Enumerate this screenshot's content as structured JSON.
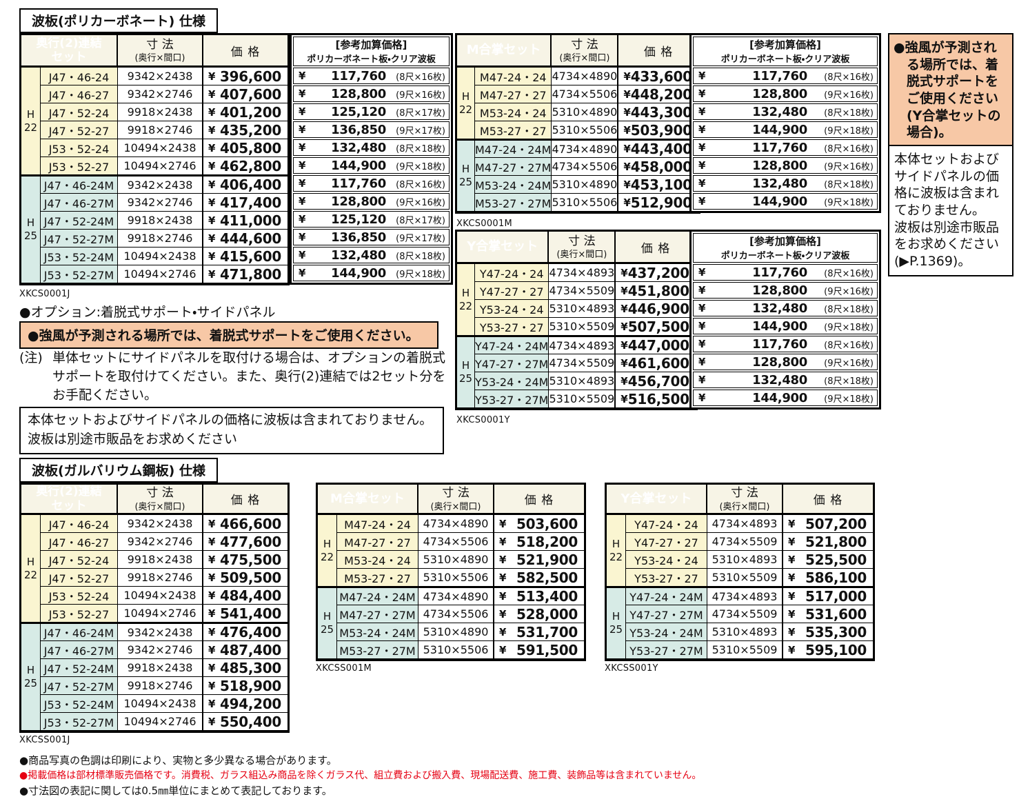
{
  "palette": {
    "row_h22_yellow": "#FAF5D1",
    "row_h25_cyan": "#D7EBE6",
    "header_cream": "#F7F4E6",
    "accent_orange": "#F7C8A6",
    "note_red": "#E60012",
    "table_border": "#000000"
  },
  "headers": {
    "size_label": "寸 法",
    "size_sub": "(奥行×間口)",
    "price_label": "価 格",
    "yen": "¥",
    "ref_lines": [
      "[参考加算価格]",
      "ポリカーボネート板・クリア波板"
    ]
  },
  "sections": {
    "poly": {
      "title": "波板(ポリカーボネート) 仕様",
      "tables": {
        "j": {
          "name_lines": [
            "奥行(2)連結",
            "セット"
          ],
          "code": "XKCS0001J",
          "groups": [
            {
              "h_label": "H",
              "h_num": "22",
              "tone": "cream",
              "rows": [
                {
                  "model": "J47・46-24",
                  "size": "9342×2438",
                  "price": "396,600",
                  "add": "117,760",
                  "sheets": "(8尺×16枚)"
                },
                {
                  "model": "J47・46-27",
                  "size": "9342×2746",
                  "price": "407,600",
                  "add": "128,800",
                  "sheets": "(9尺×16枚)"
                },
                {
                  "model": "J47・52-24",
                  "size": "9918×2438",
                  "price": "401,200",
                  "add": "125,120",
                  "sheets": "(8尺×17枚)"
                },
                {
                  "model": "J47・52-27",
                  "size": "9918×2746",
                  "price": "435,200",
                  "add": "136,850",
                  "sheets": "(9尺×17枚)"
                },
                {
                  "model": "J53・52-24",
                  "size": "10494×2438",
                  "price": "405,800",
                  "add": "132,480",
                  "sheets": "(8尺×18枚)"
                },
                {
                  "model": "J53・52-27",
                  "size": "10494×2746",
                  "price": "462,800",
                  "add": "144,900",
                  "sheets": "(9尺×18枚)"
                }
              ]
            },
            {
              "h_label": "H",
              "h_num": "25",
              "tone": "cyan",
              "rows": [
                {
                  "model": "J47・46-24M",
                  "size": "9342×2438",
                  "price": "406,400",
                  "add": "117,760",
                  "sheets": "(8尺×16枚)"
                },
                {
                  "model": "J47・46-27M",
                  "size": "9342×2746",
                  "price": "417,400",
                  "add": "128,800",
                  "sheets": "(9尺×16枚)"
                },
                {
                  "model": "J47・52-24M",
                  "size": "9918×2438",
                  "price": "411,000",
                  "add": "125,120",
                  "sheets": "(8尺×17枚)"
                },
                {
                  "model": "J47・52-27M",
                  "size": "9918×2746",
                  "price": "444,600",
                  "add": "136,850",
                  "sheets": "(9尺×17枚)"
                },
                {
                  "model": "J53・52-24M",
                  "size": "10494×2438",
                  "price": "415,600",
                  "add": "132,480",
                  "sheets": "(8尺×18枚)"
                },
                {
                  "model": "J53・52-27M",
                  "size": "10494×2746",
                  "price": "471,800",
                  "add": "144,900",
                  "sheets": "(9尺×18枚)"
                }
              ]
            }
          ]
        },
        "m": {
          "name_lines": [
            "M合掌セット"
          ],
          "code": "XKCS0001M",
          "groups": [
            {
              "h_label": "H",
              "h_num": "22",
              "tone": "cream",
              "rows": [
                {
                  "model": "M47-24・24",
                  "size": "4734×4890",
                  "price": "433,600",
                  "add": "117,760",
                  "sheets": "(8尺×16枚)"
                },
                {
                  "model": "M47-27・27",
                  "size": "4734×5506",
                  "price": "448,200",
                  "add": "128,800",
                  "sheets": "(9尺×16枚)"
                },
                {
                  "model": "M53-24・24",
                  "size": "5310×4890",
                  "price": "443,300",
                  "add": "132,480",
                  "sheets": "(8尺×18枚)"
                },
                {
                  "model": "M53-27・27",
                  "size": "5310×5506",
                  "price": "503,900",
                  "add": "144,900",
                  "sheets": "(9尺×18枚)"
                }
              ]
            },
            {
              "h_label": "H",
              "h_num": "25",
              "tone": "cyan",
              "rows": [
                {
                  "model": "M47-24・24M",
                  "size": "4734×4890",
                  "price": "443,400",
                  "add": "117,760",
                  "sheets": "(8尺×16枚)"
                },
                {
                  "model": "M47-27・27M",
                  "size": "4734×5506",
                  "price": "458,000",
                  "add": "128,800",
                  "sheets": "(9尺×16枚)"
                },
                {
                  "model": "M53-24・24M",
                  "size": "5310×4890",
                  "price": "453,100",
                  "add": "132,480",
                  "sheets": "(8尺×18枚)"
                },
                {
                  "model": "M53-27・27M",
                  "size": "5310×5506",
                  "price": "512,900",
                  "add": "144,900",
                  "sheets": "(9尺×18枚)"
                }
              ]
            }
          ]
        },
        "y": {
          "name_lines": [
            "Y合掌セット"
          ],
          "code": "XKCS0001Y",
          "groups": [
            {
              "h_label": "H",
              "h_num": "22",
              "tone": "cream",
              "rows": [
                {
                  "model": "Y47-24・24",
                  "size": "4734×4893",
                  "price": "437,200",
                  "add": "117,760",
                  "sheets": "(8尺×16枚)"
                },
                {
                  "model": "Y47-27・27",
                  "size": "4734×5509",
                  "price": "451,800",
                  "add": "128,800",
                  "sheets": "(9尺×16枚)"
                },
                {
                  "model": "Y53-24・24",
                  "size": "5310×4893",
                  "price": "446,900",
                  "add": "132,480",
                  "sheets": "(8尺×18枚)"
                },
                {
                  "model": "Y53-27・27",
                  "size": "5310×5509",
                  "price": "507,500",
                  "add": "144,900",
                  "sheets": "(9尺×18枚)"
                }
              ]
            },
            {
              "h_label": "H",
              "h_num": "25",
              "tone": "cyan",
              "rows": [
                {
                  "model": "Y47-24・24M",
                  "size": "4734×4893",
                  "price": "447,000",
                  "add": "117,760",
                  "sheets": "(8尺×16枚)"
                },
                {
                  "model": "Y47-27・27M",
                  "size": "4734×5509",
                  "price": "461,600",
                  "add": "128,800",
                  "sheets": "(9尺×16枚)"
                },
                {
                  "model": "Y53-24・24M",
                  "size": "5310×4893",
                  "price": "456,700",
                  "add": "132,480",
                  "sheets": "(8尺×18枚)"
                },
                {
                  "model": "Y53-27・27M",
                  "size": "5310×5509",
                  "price": "516,500",
                  "add": "144,900",
                  "sheets": "(9尺×18枚)"
                }
              ]
            }
          ]
        }
      }
    },
    "galv": {
      "title": "波板(ガルバリウム鋼板) 仕様",
      "tables": {
        "j": {
          "name_lines": [
            "奥行(2)連結",
            "セット"
          ],
          "code": "XKCSS001J",
          "groups": [
            {
              "h_label": "H",
              "h_num": "22",
              "tone": "cream",
              "rows": [
                {
                  "model": "J47・46-24",
                  "size": "9342×2438",
                  "price": "466,600"
                },
                {
                  "model": "J47・46-27",
                  "size": "9342×2746",
                  "price": "477,600"
                },
                {
                  "model": "J47・52-24",
                  "size": "9918×2438",
                  "price": "475,500"
                },
                {
                  "model": "J47・52-27",
                  "size": "9918×2746",
                  "price": "509,500"
                },
                {
                  "model": "J53・52-24",
                  "size": "10494×2438",
                  "price": "484,400"
                },
                {
                  "model": "J53・52-27",
                  "size": "10494×2746",
                  "price": "541,400"
                }
              ]
            },
            {
              "h_label": "H",
              "h_num": "25",
              "tone": "cyan",
              "rows": [
                {
                  "model": "J47・46-24M",
                  "size": "9342×2438",
                  "price": "476,400"
                },
                {
                  "model": "J47・46-27M",
                  "size": "9342×2746",
                  "price": "487,400"
                },
                {
                  "model": "J47・52-24M",
                  "size": "9918×2438",
                  "price": "485,300"
                },
                {
                  "model": "J47・52-27M",
                  "size": "9918×2746",
                  "price": "518,900"
                },
                {
                  "model": "J53・52-24M",
                  "size": "10494×2438",
                  "price": "494,200"
                },
                {
                  "model": "J53・52-27M",
                  "size": "10494×2746",
                  "price": "550,400"
                }
              ]
            }
          ]
        },
        "m": {
          "name_lines": [
            "M合掌セット"
          ],
          "code": "XKCSS001M",
          "groups": [
            {
              "h_label": "H",
              "h_num": "22",
              "tone": "cream",
              "rows": [
                {
                  "model": "M47-24・24",
                  "size": "4734×4890",
                  "price": "503,600"
                },
                {
                  "model": "M47-27・27",
                  "size": "4734×5506",
                  "price": "518,200"
                },
                {
                  "model": "M53-24・24",
                  "size": "5310×4890",
                  "price": "521,900"
                },
                {
                  "model": "M53-27・27",
                  "size": "5310×5506",
                  "price": "582,500"
                }
              ]
            },
            {
              "h_label": "H",
              "h_num": "25",
              "tone": "cyan",
              "rows": [
                {
                  "model": "M47-24・24M",
                  "size": "4734×4890",
                  "price": "513,400"
                },
                {
                  "model": "M47-27・27M",
                  "size": "4734×5506",
                  "price": "528,000"
                },
                {
                  "model": "M53-24・24M",
                  "size": "5310×4890",
                  "price": "531,700"
                },
                {
                  "model": "M53-27・27M",
                  "size": "5310×5506",
                  "price": "591,500"
                }
              ]
            }
          ]
        },
        "y": {
          "name_lines": [
            "Y合掌セット"
          ],
          "code": "XKCSS001Y",
          "groups": [
            {
              "h_label": "H",
              "h_num": "22",
              "tone": "cream",
              "rows": [
                {
                  "model": "Y47-24・24",
                  "size": "4734×4893",
                  "price": "507,200"
                },
                {
                  "model": "Y47-27・27",
                  "size": "4734×5509",
                  "price": "521,800"
                },
                {
                  "model": "Y53-24・24",
                  "size": "5310×4893",
                  "price": "525,500"
                },
                {
                  "model": "Y53-27・27",
                  "size": "5310×5509",
                  "price": "586,100"
                }
              ]
            },
            {
              "h_label": "H",
              "h_num": "25",
              "tone": "cyan",
              "rows": [
                {
                  "model": "Y47-24・24M",
                  "size": "4734×4893",
                  "price": "517,000"
                },
                {
                  "model": "Y47-27・27M",
                  "size": "4734×5509",
                  "price": "531,600"
                },
                {
                  "model": "Y53-24・24M",
                  "size": "5310×4893",
                  "price": "535,300"
                },
                {
                  "model": "Y53-27・27M",
                  "size": "5310×5509",
                  "price": "595,100"
                }
              ]
            }
          ]
        }
      }
    }
  },
  "notes": {
    "option": "●オプション:着脱式サポート・サイドパネル",
    "wind_warning": "●強風が予測される場所では、着脱式サポートをご使用ください。",
    "chui_label": "(注)",
    "chui_text": "単体セットにサイドパネルを取付ける場合は、オプションの着脱式サポートを取付けてください。また、奥行(2)連結では2セット分をお手配ください。",
    "no_sheet_line1": "本体セットおよびサイドパネルの価格に波板は含まれておりません。",
    "no_sheet_line2": "波板は別途市販品をお求めください"
  },
  "sidebar": {
    "wind_warning": "●強風が予測される場所では、着脱式サポートをご使用ください(Y合掌セットの場合)。",
    "no_sheet_1": "本体セットおよびサイドパネルの価格に波板は含まれておりません。",
    "no_sheet_2": "波板は別途市販品をお求めください(▶P.1369)。"
  },
  "footer": {
    "lines": [
      {
        "text": "●商品写真の色調は印刷により、実物と多少異なる場合があります。",
        "color": "black"
      },
      {
        "text": "●掲載価格は部材標準販売価格です。消費税、ガラス組込み商品を除くガラス代、組立費および搬入費、現場配送費、施工費、装飾品等は含まれていません。",
        "color": "red"
      },
      {
        "text": "●寸法図の表記に関しては0.5㎜単位にまとめて表記しております。",
        "color": "black"
      }
    ]
  }
}
